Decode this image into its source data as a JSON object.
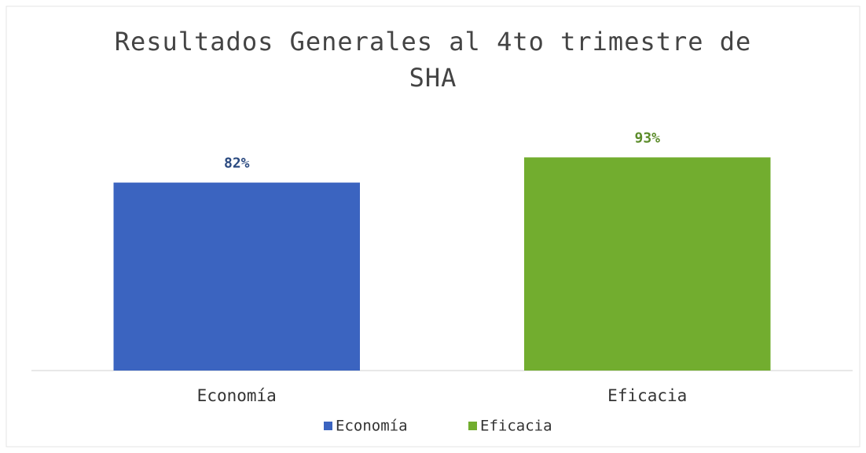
{
  "chart_data": {
    "type": "bar",
    "title": "Resultados Generales al 4to trimestre de SHA",
    "categories": [
      "Economía",
      "Eficacia"
    ],
    "values": [
      82,
      93
    ],
    "value_labels": [
      "82%",
      "93%"
    ],
    "colors": [
      "#3b64c0",
      "#72ad2f"
    ],
    "ylim": [
      0,
      100
    ],
    "legend": "bottom"
  }
}
